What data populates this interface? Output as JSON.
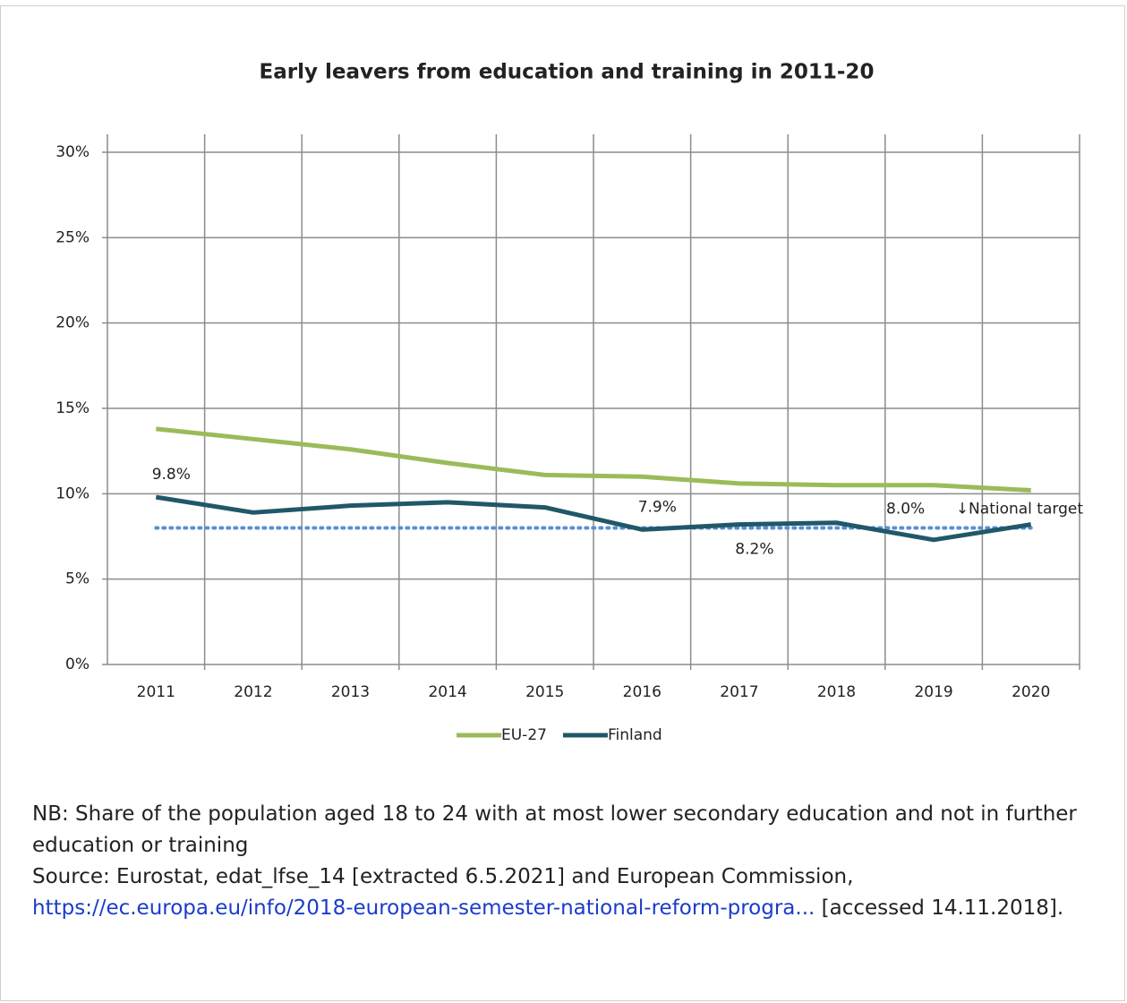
{
  "chart_data": {
    "type": "line",
    "title": "Early leavers from education and training in 2011-20",
    "categories": [
      "2011",
      "2012",
      "2013",
      "2014",
      "2015",
      "2016",
      "2017",
      "2018",
      "2019",
      "2020"
    ],
    "series": [
      {
        "name": "EU-27",
        "color": "#9bbb59",
        "values": [
          13.8,
          13.2,
          12.6,
          11.8,
          11.1,
          11.0,
          10.6,
          10.5,
          10.5,
          10.2
        ]
      },
      {
        "name": "Finland",
        "color": "#215868",
        "values": [
          9.8,
          8.9,
          9.3,
          9.5,
          9.2,
          7.9,
          8.2,
          8.3,
          7.3,
          8.2
        ],
        "value_labels": [
          "9.8%",
          null,
          null,
          null,
          null,
          "7.9%",
          "8.2%",
          null,
          null,
          null
        ]
      }
    ],
    "target": {
      "value": 8.0,
      "label": "8.0%",
      "annotation": "↓National target",
      "color": "#5b8fd6"
    },
    "ylim": [
      0,
      30
    ],
    "yticks": [
      {
        "value": 0,
        "label": "0%"
      },
      {
        "value": 5,
        "label": "5%"
      },
      {
        "value": 10,
        "label": "10%"
      },
      {
        "value": 15,
        "label": "15%"
      },
      {
        "value": 20,
        "label": "20%"
      },
      {
        "value": 25,
        "label": "25%"
      },
      {
        "value": 30,
        "label": "30%"
      }
    ],
    "grid": true,
    "legend": "bottom"
  },
  "notes": {
    "nb": "NB: Share of the population aged 18 to 24 with at most lower secondary education and not in further education or training",
    "source": "Source: Eurostat, edat_lfse_14 [extracted 6.5.2021] and European Commission,",
    "link": "https://ec.europa.eu/info/2018-european-semester-national-reform-progra...",
    "accessed": "[accessed 14.11.2018]."
  }
}
